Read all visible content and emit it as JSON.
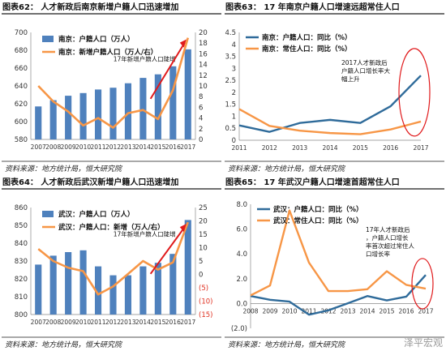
{
  "watermark": "泽平宏观",
  "chart_data": [
    {
      "type": "bar",
      "title": "图表62：  人才新政后南京新增户籍人口迅速增加",
      "source": "资料来源：地方统计局，恒大研究院",
      "categories": [
        "2007",
        "2008",
        "2009",
        "2010",
        "2011",
        "2012",
        "2013",
        "2014",
        "2015",
        "2016",
        "2017"
      ],
      "series": [
        {
          "name": "南京：户籍人口（万人）",
          "type": "bar",
          "axis": "left",
          "color": "#4f81bd",
          "values": [
            617,
            624,
            629,
            632,
            636,
            638,
            643,
            649,
            653,
            662,
            681
          ]
        },
        {
          "name": "南京：新增户籍人口（万人/右）",
          "type": "line",
          "axis": "right",
          "color": "#f79646",
          "values": [
            10,
            7.1,
            5.2,
            2.6,
            4,
            2.2,
            4.9,
            5.5,
            3.8,
            9.2,
            19
          ]
        }
      ],
      "ylim": [
        580,
        700
      ],
      "yticks": [
        580,
        600,
        620,
        640,
        660,
        680,
        700
      ],
      "y2lim": [
        0,
        20
      ],
      "y2ticks": [
        0,
        2,
        4,
        6,
        8,
        10,
        12,
        14,
        16,
        18,
        20
      ],
      "annotation": "17年新增户籍人口陡增",
      "legend": "top-left",
      "grid": false
    },
    {
      "type": "line",
      "title": "图表63：  17 年南京户籍人口增速远超常住人口",
      "source": "资料来源：地方统计局，恒大研究院",
      "categories": [
        "2011",
        "2012",
        "2013",
        "2014",
        "2015",
        "2016",
        "2017"
      ],
      "series": [
        {
          "name": "南京：户籍人口：同比（%）",
          "color": "#2f6b9a",
          "values": [
            0.62,
            0.35,
            0.72,
            0.85,
            0.72,
            1.42,
            2.7
          ]
        },
        {
          "name": "南京：常住人口：同比（%）",
          "color": "#f79646",
          "values": [
            1.3,
            0.6,
            0.4,
            0.3,
            0.25,
            0.45,
            0.78
          ]
        }
      ],
      "ylim": [
        0,
        4.5
      ],
      "yticks": [
        0,
        0.5,
        1,
        1.5,
        2,
        2.5,
        3,
        3.5,
        4,
        4.5
      ],
      "annotation": "2017人才新政后户籍人口增长率大幅上升",
      "legend": "top-left",
      "grid": false
    },
    {
      "type": "bar",
      "title": "图表64：  人才新政后武汉新增户籍人口迅速增加",
      "source": "资料来源：地方统计局，恒大研究院",
      "categories": [
        "2007",
        "2008",
        "2009",
        "2010",
        "2011",
        "2012",
        "2013",
        "2014",
        "2015",
        "2016",
        "2017"
      ],
      "series": [
        {
          "name": "武汉：户籍人口（万人）",
          "type": "bar",
          "axis": "left",
          "color": "#4f81bd",
          "values": [
            828,
            833,
            835,
            836,
            827,
            822,
            822,
            827,
            829,
            834,
            853
          ]
        },
        {
          "name": "武汉：户籍人口：新增（万人/右）",
          "type": "line",
          "axis": "right",
          "color": "#f79646",
          "values": [
            9.5,
            5,
            2.5,
            1.2,
            -7.5,
            -4.5,
            0.2,
            5,
            1.8,
            4.5,
            19.5
          ]
        }
      ],
      "ylim": [
        800,
        860
      ],
      "yticks": [
        800,
        810,
        820,
        830,
        840,
        850,
        860
      ],
      "y2lim": [
        -15,
        25
      ],
      "y2ticks": [
        -15,
        -10,
        -5,
        0,
        5,
        10,
        15,
        20,
        25
      ],
      "y2ticklabels": [
        "(15)",
        "(10)",
        "(5)",
        "0",
        "5",
        "10",
        "15",
        "20",
        "25"
      ],
      "annotation": "17年新增户籍人口陡增",
      "legend": "top-left",
      "grid": false
    },
    {
      "type": "line",
      "title": "图表65：  17 年武汉户籍人口增速首超常住人口",
      "source": "资料来源：地方统计局，恒大研究院",
      "categories": [
        "2008",
        "2009",
        "2010",
        "2011",
        "2012",
        "2013",
        "2014",
        "2015",
        "2016",
        "2017"
      ],
      "series": [
        {
          "name": "武汉：户籍人口：同比（%）",
          "color": "#2f6b9a",
          "values": [
            0.6,
            0.3,
            0.15,
            -0.9,
            -0.55,
            0.02,
            0.6,
            0.25,
            0.55,
            2.3
          ]
        },
        {
          "name": "武汉：常住人口：同比（%）",
          "color": "#f79646",
          "values": [
            0.65,
            1.45,
            7.5,
            3.3,
            1.0,
            1.0,
            1.15,
            2.6,
            1.5,
            1.2
          ]
        }
      ],
      "ylim": [
        -2,
        8
      ],
      "yticks": [
        -2,
        0,
        2,
        4,
        6,
        8
      ],
      "yticklabels": [
        "(2.0)",
        "0.0",
        "2.0",
        "4.0",
        "6.0",
        "8.0"
      ],
      "xticklabels": [
        "2008",
        "2009",
        "2010",
        "2011",
        "2012",
        "2013",
        "2014",
        "2015",
        "2016",
        "2017"
      ],
      "annotation": "17年人才新政后，户籍人口增长率首次超过常住人口增长率",
      "legend": "top-left",
      "grid": false
    }
  ]
}
